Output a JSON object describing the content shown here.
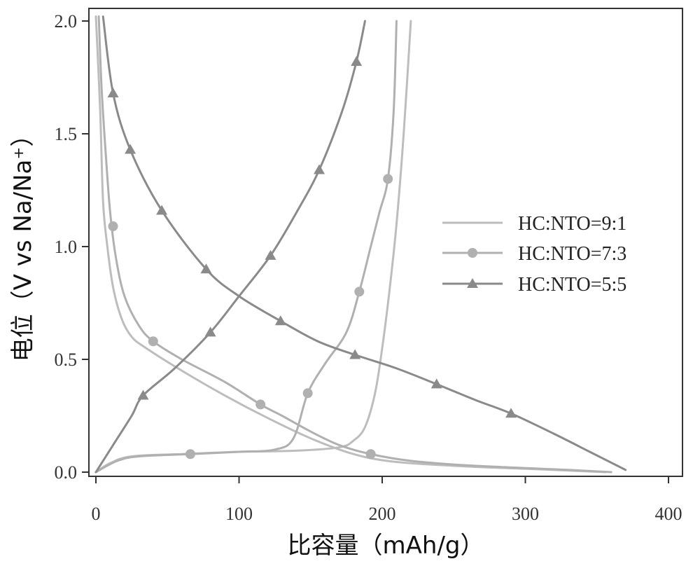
{
  "chart_data": {
    "type": "line",
    "xlabel": "比容量（mAh/g）",
    "ylabel": "电位（V vs Na/Na⁺）",
    "xlim": [
      0,
      400
    ],
    "ylim": [
      0,
      2.0
    ],
    "x_ticks": [
      "0",
      "100",
      "200",
      "300",
      "400"
    ],
    "y_ticks": [
      "0.0",
      "0.5",
      "1.0",
      "1.5",
      "2.0"
    ],
    "grid": false,
    "legend_position": "center-right",
    "series": [
      {
        "name": "HC:NTO=9:1",
        "color": "#bdbdbd",
        "marker": "none",
        "curves": [
          [
            [
              0,
              2.02
            ],
            [
              3,
              1.6
            ],
            [
              5,
              1.2
            ],
            [
              8,
              1.0
            ],
            [
              12,
              0.82
            ],
            [
              18,
              0.68
            ],
            [
              25,
              0.6
            ],
            [
              35,
              0.55
            ],
            [
              60,
              0.45
            ],
            [
              90,
              0.34
            ],
            [
              120,
              0.24
            ],
            [
              150,
              0.15
            ],
            [
              180,
              0.08
            ],
            [
              210,
              0.045
            ],
            [
              260,
              0.025
            ],
            [
              300,
              0.015
            ],
            [
              356,
              0.0
            ]
          ],
          [
            [
              0,
              0.0
            ],
            [
              10,
              0.04
            ],
            [
              25,
              0.07
            ],
            [
              60,
              0.08
            ],
            [
              100,
              0.09
            ],
            [
              140,
              0.095
            ],
            [
              170,
              0.11
            ],
            [
              180,
              0.14
            ],
            [
              188,
              0.2
            ],
            [
              195,
              0.35
            ],
            [
              200,
              0.55
            ],
            [
              205,
              0.8
            ],
            [
              210,
              1.1
            ],
            [
              215,
              1.5
            ],
            [
              220,
              2.0
            ]
          ]
        ]
      },
      {
        "name": "HC:NTO=7:3",
        "color": "#b0b0b0",
        "marker": "circle",
        "curves": [
          [
            [
              2,
              2.02
            ],
            [
              4,
              1.7
            ],
            [
              7,
              1.4
            ],
            [
              10,
              1.15
            ],
            [
              14,
              0.95
            ],
            [
              20,
              0.78
            ],
            [
              30,
              0.65
            ],
            [
              40,
              0.58
            ],
            [
              60,
              0.5
            ],
            [
              90,
              0.4
            ],
            [
              115,
              0.3
            ],
            [
              130,
              0.25
            ],
            [
              150,
              0.18
            ],
            [
              170,
              0.12
            ],
            [
              192,
              0.08
            ],
            [
              220,
              0.05
            ],
            [
              260,
              0.03
            ],
            [
              330,
              0.01
            ],
            [
              360,
              0.0
            ]
          ],
          [
            [
              0,
              0.0
            ],
            [
              15,
              0.05
            ],
            [
              30,
              0.07
            ],
            [
              66,
              0.08
            ],
            [
              100,
              0.09
            ],
            [
              125,
              0.1
            ],
            [
              138,
              0.15
            ],
            [
              148,
              0.35
            ],
            [
              160,
              0.48
            ],
            [
              175,
              0.62
            ],
            [
              184,
              0.8
            ],
            [
              192,
              1.0
            ],
            [
              198,
              1.15
            ],
            [
              204,
              1.3
            ],
            [
              208,
              1.6
            ],
            [
              210,
              2.0
            ]
          ]
        ]
      },
      {
        "name": "HC:NTO=5:5",
        "color": "#8a8a8a",
        "marker": "triangle",
        "curves": [
          [
            [
              5,
              2.02
            ],
            [
              12,
              1.68
            ],
            [
              24,
              1.43
            ],
            [
              46,
              1.16
            ],
            [
              77,
              0.9
            ],
            [
              100,
              0.78
            ],
            [
              129,
              0.67
            ],
            [
              155,
              0.58
            ],
            [
              181,
              0.52
            ],
            [
              210,
              0.46
            ],
            [
              238,
              0.39
            ],
            [
              265,
              0.32
            ],
            [
              290,
              0.26
            ],
            [
              320,
              0.17
            ],
            [
              345,
              0.09
            ],
            [
              370,
              0.01
            ]
          ],
          [
            [
              0,
              0.0
            ],
            [
              12,
              0.12
            ],
            [
              25,
              0.25
            ],
            [
              33,
              0.34
            ],
            [
              55,
              0.46
            ],
            [
              80,
              0.62
            ],
            [
              100,
              0.78
            ],
            [
              122,
              0.96
            ],
            [
              140,
              1.15
            ],
            [
              156,
              1.34
            ],
            [
              172,
              1.6
            ],
            [
              182,
              1.82
            ],
            [
              188,
              2.0
            ]
          ]
        ]
      }
    ],
    "marker_points": {
      "HC:NTO=7:3": [
        [
          12,
          1.09
        ],
        [
          40,
          0.58
        ],
        [
          66,
          0.08
        ],
        [
          115,
          0.3
        ],
        [
          148,
          0.35
        ],
        [
          184,
          0.8
        ],
        [
          192,
          0.08
        ],
        [
          204,
          1.3
        ]
      ],
      "HC:NTO=5:5": [
        [
          12,
          1.68
        ],
        [
          24,
          1.43
        ],
        [
          46,
          1.16
        ],
        [
          77,
          0.9
        ],
        [
          129,
          0.67
        ],
        [
          181,
          0.52
        ],
        [
          238,
          0.39
        ],
        [
          290,
          0.26
        ],
        [
          33,
          0.34
        ],
        [
          80,
          0.62
        ],
        [
          122,
          0.96
        ],
        [
          156,
          1.34
        ],
        [
          182,
          1.82
        ]
      ]
    }
  }
}
